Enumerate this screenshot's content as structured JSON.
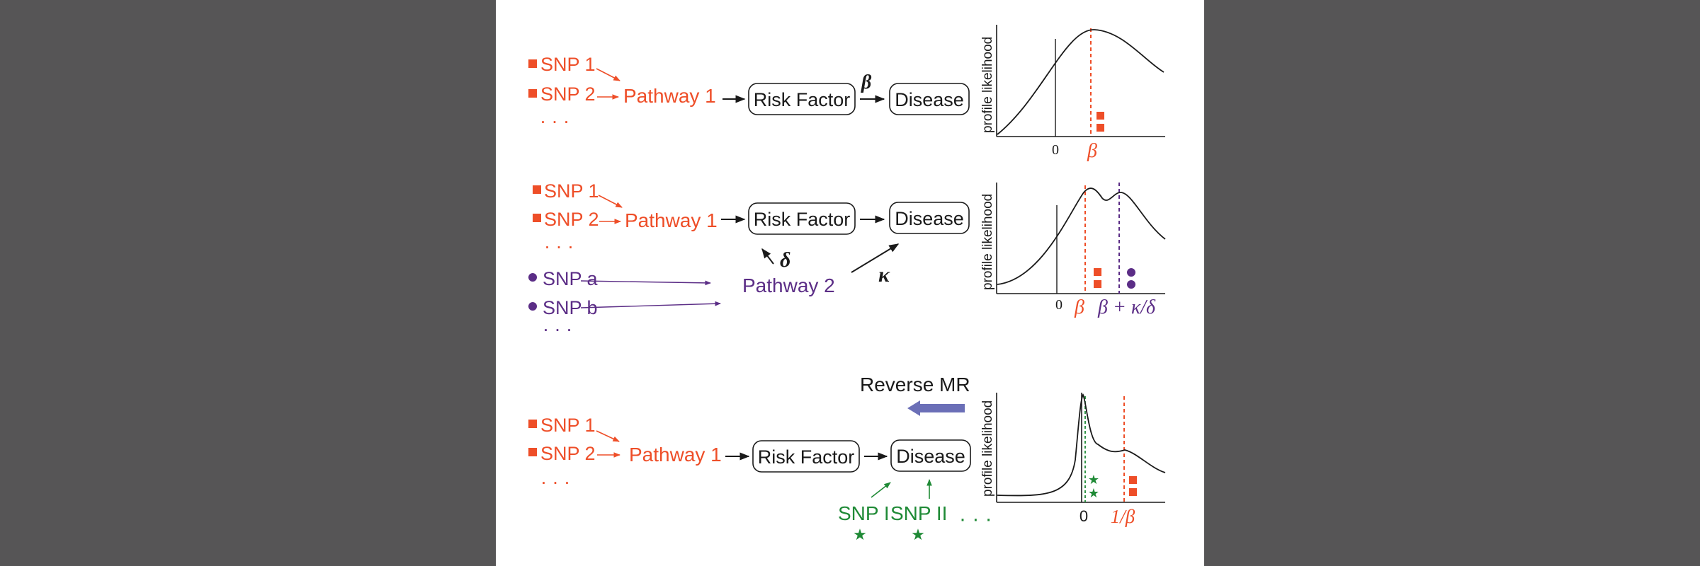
{
  "colors": {
    "background": "#565556",
    "panel": "#ffffff",
    "orange": "#ee4e28",
    "purple": "#5b2d86",
    "green": "#1f8a36",
    "arrow_blue": "#6b6fb7",
    "black": "#1a1a1a"
  },
  "panels": [
    {
      "snps": [
        "SNP 1",
        "SNP 2"
      ],
      "snp_ellipsis": "· · ·",
      "pathway": "Pathway 1",
      "risk_factor": "Risk Factor",
      "disease": "Disease",
      "beta_label": "β",
      "plot": {
        "ylabel": "profile likelihood",
        "zero_label": "0",
        "marker_label": "β"
      }
    },
    {
      "snps": [
        "SNP 1",
        "SNP 2"
      ],
      "snp_ellipsis": "· · ·",
      "snps2": [
        "SNP a",
        "SNP b"
      ],
      "snp2_ellipsis": "· · ·",
      "pathway": "Pathway 1",
      "pathway2": "Pathway 2",
      "risk_factor": "Risk Factor",
      "disease": "Disease",
      "delta_label": "δ",
      "kappa_label": "κ",
      "plot": {
        "ylabel": "profile likelihood",
        "zero_label": "0",
        "marker_label": "β",
        "marker2_label": "β + κ/δ"
      }
    },
    {
      "reverse_label": "Reverse MR",
      "snps": [
        "SNP 1",
        "SNP 2"
      ],
      "snp_ellipsis": "· · ·",
      "pathway": "Pathway 1",
      "risk_factor": "Risk Factor",
      "disease": "Disease",
      "snps3": [
        "SNP I",
        "SNP II"
      ],
      "snp3_ellipsis": "· · ·",
      "plot": {
        "ylabel": "profile likelihood",
        "zero_label": "0",
        "marker_label": "1/β"
      }
    }
  ]
}
